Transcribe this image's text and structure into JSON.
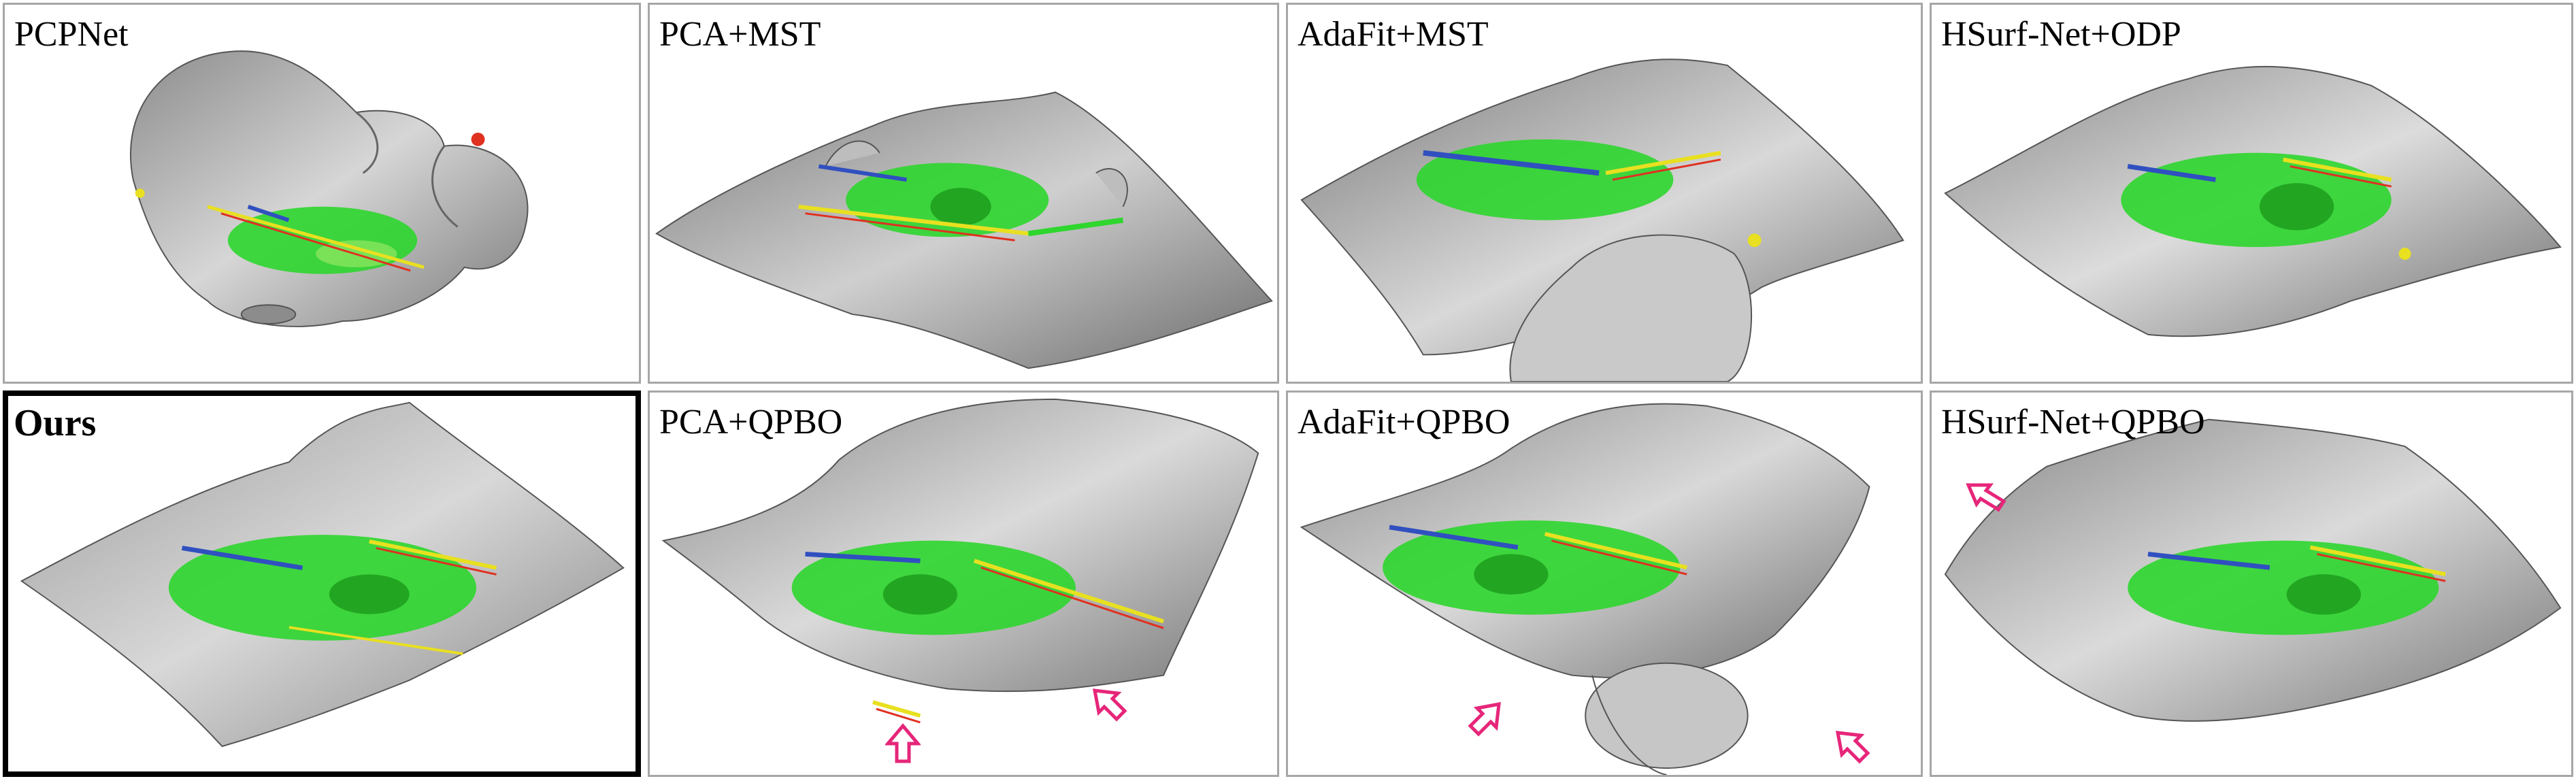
{
  "figure": {
    "panels": [
      {
        "label": "PCPNet",
        "highlight": false
      },
      {
        "label": "PCA+MST",
        "highlight": false
      },
      {
        "label": "AdaFit+MST",
        "highlight": false
      },
      {
        "label": "HSurf-Net+ODP",
        "highlight": false
      },
      {
        "label": "Ours",
        "highlight": true
      },
      {
        "label": "PCA+QPBO",
        "highlight": false
      },
      {
        "label": "AdaFit+QPBO",
        "highlight": false
      },
      {
        "label": "HSurf-Net+QPBO",
        "highlight": false
      }
    ],
    "colors": {
      "surface": "#9a9a9a",
      "surface_light": "#d4d4d4",
      "points_green": "#2ed62e",
      "points_yellow": "#e8e020",
      "points_red": "#e03020",
      "points_blue": "#3050c0",
      "arrow": "#e6267a",
      "highlight_border": "#000000",
      "panel_border": "#a6a6a6"
    }
  }
}
